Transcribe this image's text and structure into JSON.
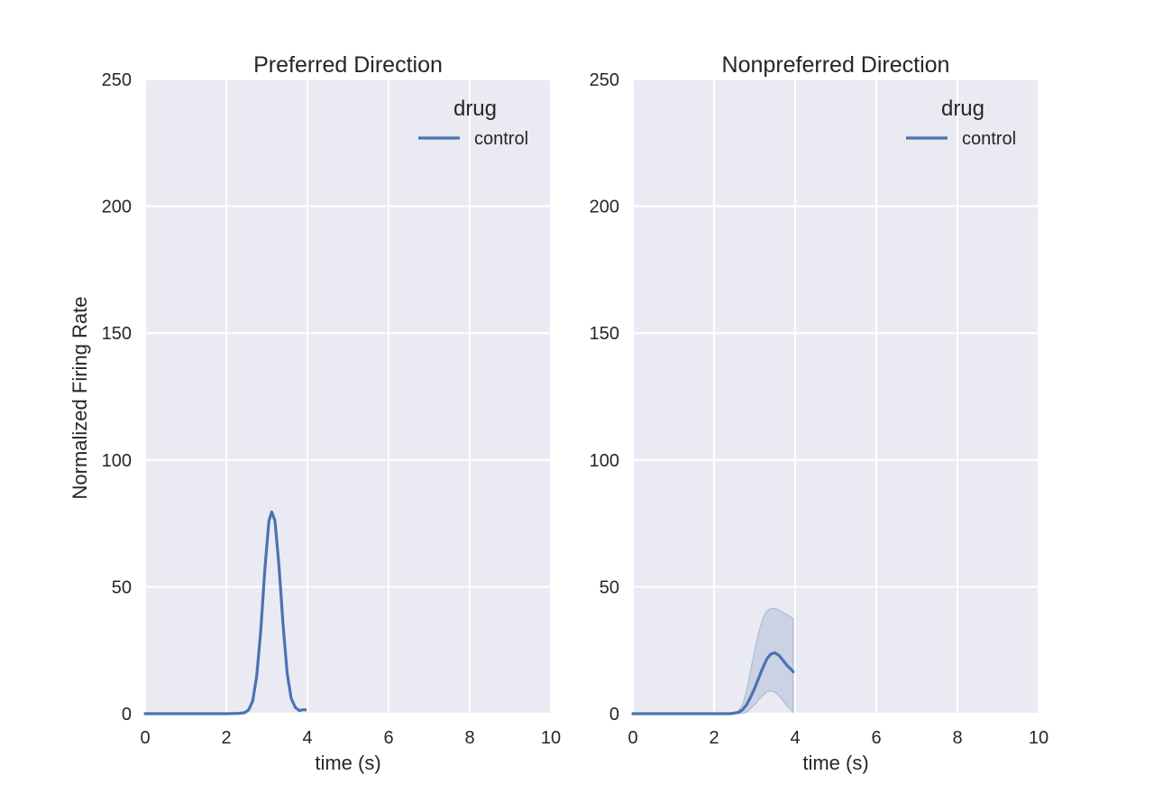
{
  "figure": {
    "ylabel": "Normalized Firing Rate",
    "line_color": "#4c72b0",
    "band_color": "#4c72b0",
    "background_color": "#eaeaf2"
  },
  "chart_data": [
    {
      "type": "line",
      "title": "Preferred Direction",
      "xlabel": "time (s)",
      "ylabel": "Normalized Firing Rate",
      "xlim": [
        0,
        10
      ],
      "ylim": [
        0,
        250
      ],
      "xticks": [
        "0",
        "2",
        "4",
        "6",
        "8",
        "10"
      ],
      "yticks": [
        "0",
        "50",
        "100",
        "150",
        "200",
        "250"
      ],
      "grid": true,
      "legend": {
        "title": "drug",
        "placement": "top-right",
        "entries": [
          "control"
        ]
      },
      "series": [
        {
          "name": "control",
          "x": [
            0,
            0.5,
            1.0,
            1.5,
            2.0,
            2.3,
            2.45,
            2.55,
            2.65,
            2.75,
            2.85,
            2.95,
            3.05,
            3.12,
            3.2,
            3.3,
            3.4,
            3.5,
            3.6,
            3.7,
            3.8,
            3.9,
            3.95
          ],
          "y": [
            0,
            0,
            0,
            0,
            0,
            0.1,
            0.4,
            1.5,
            5,
            15,
            33,
            57,
            76,
            79.5,
            76,
            58,
            35,
            16,
            6,
            2.5,
            1.2,
            1.6,
            1.5
          ]
        }
      ]
    },
    {
      "type": "line",
      "title": "Nonpreferred Direction",
      "xlabel": "time (s)",
      "ylabel": "",
      "xlim": [
        0,
        10
      ],
      "ylim": [
        0,
        250
      ],
      "xticks": [
        "0",
        "2",
        "4",
        "6",
        "8",
        "10"
      ],
      "yticks": [
        "0",
        "50",
        "100",
        "150",
        "200",
        "250"
      ],
      "grid": true,
      "legend": {
        "title": "drug",
        "placement": "top-right",
        "entries": [
          "control"
        ]
      },
      "series": [
        {
          "name": "control",
          "x": [
            0,
            0.5,
            1.0,
            1.5,
            2.0,
            2.4,
            2.6,
            2.7,
            2.8,
            2.9,
            3.0,
            3.1,
            3.2,
            3.3,
            3.4,
            3.5,
            3.6,
            3.7,
            3.8,
            3.9,
            3.95
          ],
          "y": [
            0,
            0,
            0,
            0,
            0,
            0,
            0.5,
            1.5,
            3.5,
            6.5,
            10,
            14,
            18,
            21.5,
            23.5,
            24,
            23,
            21,
            19,
            17.5,
            16.5
          ],
          "ci_low": [
            0,
            0,
            0,
            0,
            0,
            0,
            0,
            0,
            0.5,
            2,
            3.5,
            5.5,
            7,
            8.5,
            9,
            8.5,
            7,
            5,
            3,
            1.5,
            0.5
          ],
          "ci_high": [
            0,
            0,
            0,
            0,
            0,
            0,
            1,
            3.5,
            9,
            17,
            25,
            32,
            37.5,
            40.5,
            41.5,
            41.5,
            41,
            40,
            39,
            38,
            37.5
          ]
        }
      ]
    }
  ]
}
